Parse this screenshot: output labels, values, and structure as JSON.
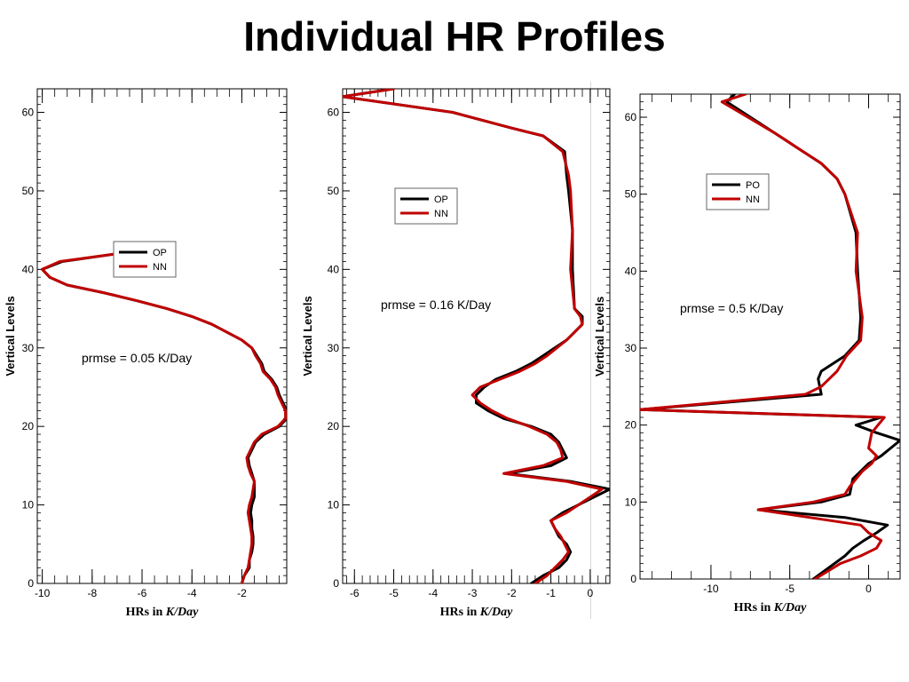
{
  "slide": {
    "title": "Individual HR Profiles"
  },
  "colors": {
    "op": "#000000",
    "nn": "#c00000",
    "frame": "#000000",
    "divider": "#d8d8d8"
  },
  "chart_data": [
    {
      "type": "line",
      "title": "",
      "xlabel_prefix": "HRs in ",
      "xlabel_unit": "K/Day",
      "ylabel": "Vertical Levels",
      "xlim": [
        -10.2,
        -0.2
      ],
      "ylim": [
        0,
        63
      ],
      "xticks": [
        -10,
        -8,
        -6,
        -4,
        -2
      ],
      "xtick_labels": [
        "-10",
        "-8",
        "-6",
        "-4",
        "-2"
      ],
      "yticks": [
        0,
        10,
        20,
        30,
        40,
        50,
        60
      ],
      "ytick_labels": [
        "0",
        "10",
        "20",
        "30",
        "40",
        "50",
        "60"
      ],
      "annotation": "prmse = 0.05 K/Day",
      "legend_position": "center-left",
      "series": [
        {
          "name": "OP",
          "color": "#000000",
          "x": [
            -2.0,
            -1.9,
            -1.7,
            -1.7,
            -1.6,
            -1.55,
            -1.55,
            -1.6,
            -1.6,
            -1.65,
            -1.6,
            -1.5,
            -1.5,
            -1.5,
            -1.6,
            -1.7,
            -1.75,
            -1.6,
            -1.45,
            -1.1,
            -0.5,
            -0.2,
            -0.2,
            -0.35,
            -0.5,
            -0.6,
            -0.8,
            -1.1,
            -1.2,
            -1.4,
            -1.6,
            -2.0,
            -2.6,
            -3.2,
            -4.0,
            -5.0,
            -6.2,
            -7.5,
            -9.0,
            -9.7,
            -10.0,
            -9.2,
            -7.0,
            -6.0
          ],
          "y": [
            0,
            1,
            2,
            3,
            4,
            5,
            6,
            7,
            8,
            9,
            10,
            11,
            12,
            13,
            14,
            15,
            16,
            17,
            18,
            19,
            20,
            21,
            22,
            23,
            24,
            25,
            26,
            27,
            28,
            29,
            30,
            31,
            32,
            33,
            34,
            35,
            36,
            37,
            38,
            39,
            40,
            41,
            42,
            43
          ]
        },
        {
          "name": "NN",
          "color": "#c00000",
          "x": [
            -2.0,
            -1.9,
            -1.75,
            -1.7,
            -1.65,
            -1.6,
            -1.6,
            -1.65,
            -1.7,
            -1.75,
            -1.7,
            -1.6,
            -1.55,
            -1.5,
            -1.65,
            -1.75,
            -1.8,
            -1.65,
            -1.5,
            -1.2,
            -0.55,
            -0.25,
            -0.25,
            -0.4,
            -0.55,
            -0.65,
            -0.85,
            -1.15,
            -1.25,
            -1.45,
            -1.6,
            -2.0,
            -2.6,
            -3.2,
            -4.0,
            -5.0,
            -6.2,
            -7.5,
            -9.0,
            -9.7,
            -10.0,
            -9.3,
            -7.0,
            -6.0
          ],
          "y": [
            0,
            1,
            2,
            3,
            4,
            5,
            6,
            7,
            8,
            9,
            10,
            11,
            12,
            13,
            14,
            15,
            16,
            17,
            18,
            19,
            20,
            21,
            22,
            23,
            24,
            25,
            26,
            27,
            28,
            29,
            30,
            31,
            32,
            33,
            34,
            35,
            36,
            37,
            38,
            39,
            40,
            41,
            42,
            43
          ]
        }
      ]
    },
    {
      "type": "line",
      "title": "",
      "xlabel_prefix": "HRs in ",
      "xlabel_unit": "K/Day",
      "ylabel": "Vertical Levels",
      "xlim": [
        -6.3,
        0.5
      ],
      "ylim": [
        0,
        63
      ],
      "xticks": [
        -6,
        -5,
        -4,
        -3,
        -2,
        -1,
        0
      ],
      "xtick_labels": [
        "-6",
        "-5",
        "-4",
        "-3",
        "-2",
        "-1",
        "0"
      ],
      "yticks": [
        0,
        10,
        20,
        30,
        40,
        50,
        60
      ],
      "ytick_labels": [
        "0",
        "10",
        "20",
        "30",
        "40",
        "50",
        "60"
      ],
      "annotation": "prmse = 0.16 K/Day",
      "legend_position": "top-center",
      "series": [
        {
          "name": "OP",
          "color": "#000000",
          "x": [
            -1.5,
            -1.2,
            -0.8,
            -0.6,
            -0.5,
            -0.6,
            -0.8,
            -0.9,
            -1.0,
            -0.7,
            0.1,
            0.5,
            -0.5,
            -2.1,
            -1.0,
            -0.6,
            -0.7,
            -0.8,
            -1.0,
            -1.5,
            -2.2,
            -2.6,
            -2.9,
            -2.9,
            -2.7,
            -2.4,
            -1.9,
            -1.5,
            -1.2,
            -0.9,
            -0.6,
            -0.4,
            -0.2,
            -0.2,
            -0.4,
            -0.45,
            -0.45,
            -0.55,
            -0.6,
            -0.65,
            -1.2,
            -2.0,
            -3.5,
            -6.3,
            -5.0
          ],
          "y": [
            0,
            1,
            2,
            3,
            4,
            5,
            6,
            7,
            8,
            9,
            11,
            12,
            13,
            14,
            15,
            16,
            17,
            18,
            19,
            20,
            21,
            22,
            23,
            24,
            25,
            26,
            27,
            28,
            29,
            30,
            31,
            32,
            33,
            34,
            35,
            40,
            45,
            50,
            52,
            55,
            57,
            58,
            60,
            62,
            63
          ]
        },
        {
          "name": "NN",
          "color": "#c00000",
          "x": [
            -1.4,
            -1.1,
            -0.9,
            -0.7,
            -0.55,
            -0.65,
            -0.75,
            -0.9,
            -1.0,
            -0.6,
            0.0,
            0.3,
            -0.6,
            -2.2,
            -1.2,
            -0.7,
            -0.75,
            -0.85,
            -1.1,
            -1.55,
            -2.1,
            -2.5,
            -2.8,
            -3.0,
            -2.8,
            -2.3,
            -1.8,
            -1.4,
            -1.1,
            -0.85,
            -0.6,
            -0.4,
            -0.2,
            -0.25,
            -0.4,
            -0.5,
            -0.45,
            -0.5,
            -0.55,
            -0.7,
            -1.2,
            -2.0,
            -3.5,
            -6.3,
            -5.0
          ],
          "y": [
            0,
            1,
            2,
            3,
            4,
            5,
            6,
            7,
            8,
            9,
            11,
            12,
            13,
            14,
            15,
            16,
            17,
            18,
            19,
            20,
            21,
            22,
            23,
            24,
            25,
            26,
            27,
            28,
            29,
            30,
            31,
            32,
            33,
            34,
            35,
            40,
            45,
            50,
            52,
            55,
            57,
            58,
            60,
            62,
            63
          ]
        }
      ]
    },
    {
      "type": "line",
      "title": "",
      "xlabel_prefix": "HRs in ",
      "xlabel_unit": "K/Day",
      "ylabel": "Vertical Levels",
      "xlim": [
        -14.5,
        2.0
      ],
      "ylim": [
        0,
        63
      ],
      "xticks": [
        -10,
        -5,
        0
      ],
      "xtick_labels": [
        "-10",
        "-5",
        "0"
      ],
      "yticks": [
        0,
        10,
        20,
        30,
        40,
        50,
        60
      ],
      "ytick_labels": [
        "0",
        "10",
        "20",
        "30",
        "40",
        "50",
        "60"
      ],
      "annotation": "prmse = 0.5 K/Day",
      "legend_position": "top-center",
      "series": [
        {
          "name": "PO",
          "color": "#000000",
          "x": [
            -3.5,
            -1.5,
            -1.0,
            -0.3,
            0.5,
            1.2,
            -1.5,
            -7.0,
            -3.0,
            -1.2,
            -1.0,
            -0.5,
            0.0,
            0.8,
            2.0,
            0.5,
            -0.8,
            0.8,
            -14.5,
            -3.0,
            -3.2,
            -3.0,
            -1.5,
            -0.6,
            -0.5,
            -0.7,
            -0.8,
            -1.5,
            -2.0,
            -3.0,
            -4.5,
            -6.0,
            -9.0,
            -8.5
          ],
          "y": [
            0,
            3,
            4,
            5,
            6,
            7,
            8,
            9,
            10,
            11,
            13,
            14,
            15,
            16,
            18,
            19,
            20,
            21,
            22,
            24,
            26,
            27,
            29,
            31,
            34,
            40,
            45,
            50,
            52,
            54,
            56,
            58,
            62,
            63
          ]
        },
        {
          "name": "NN",
          "color": "#c00000",
          "x": [
            -3.4,
            -1.8,
            -0.5,
            0.5,
            0.8,
            0.0,
            -0.5,
            -7.0,
            -3.5,
            -1.5,
            -1.2,
            -0.8,
            -0.4,
            0.2,
            0.5,
            0.0,
            0.2,
            1.0,
            -14.5,
            -4.0,
            -3.0,
            -2.0,
            -1.4,
            -0.5,
            -0.4,
            -0.8,
            -0.7,
            -1.5,
            -2.0,
            -3.0,
            -4.5,
            -6.0,
            -9.3,
            -7.8
          ],
          "y": [
            0,
            2,
            3,
            4,
            5,
            6,
            7,
            9,
            10,
            11,
            12,
            13,
            14,
            15,
            16,
            17,
            19,
            21,
            22,
            24,
            25,
            27,
            29,
            31,
            34,
            40,
            45,
            50,
            52,
            54,
            56,
            58,
            62,
            63
          ]
        }
      ]
    }
  ]
}
